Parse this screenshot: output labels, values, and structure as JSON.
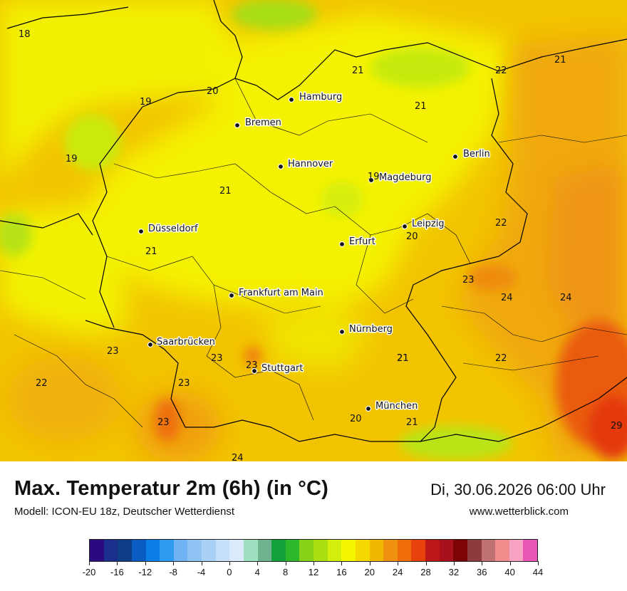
{
  "map": {
    "cities": [
      {
        "name": "Hamburg"
      },
      {
        "name": "Bremen"
      },
      {
        "name": "Hannover"
      },
      {
        "name": "Berlin"
      },
      {
        "name": "Magdeburg"
      },
      {
        "name": "Leipzig"
      },
      {
        "name": "Erfurt"
      },
      {
        "name": "Düsseldorf"
      },
      {
        "name": "Frankfurt am Main"
      },
      {
        "name": "Nürnberg"
      },
      {
        "name": "Saarbrücken"
      },
      {
        "name": "Stuttgart"
      },
      {
        "name": "München"
      }
    ],
    "values": [
      "18",
      "20",
      "19",
      "19",
      "21",
      "21",
      "22",
      "21",
      "21",
      "19",
      "21",
      "22",
      "20",
      "21",
      "23",
      "24",
      "24",
      "21",
      "22",
      "23",
      "23",
      "23",
      "22",
      "23",
      "23",
      "20",
      "21",
      "29",
      "24"
    ]
  },
  "footer": {
    "title": "Max. Temperatur 2m (6h) (in °C)",
    "subtitle": "Modell: ICON-EU 18z, Deutscher Wetterdienst",
    "datetime": "Di, 30.06.2026 06:00 Uhr",
    "website": "www.wetterblick.com"
  },
  "legend": {
    "colors": [
      "#2a0a7e",
      "#1a2e8c",
      "#0f3d86",
      "#0a5cc2",
      "#0a7de6",
      "#2f9bf0",
      "#6fb3f2",
      "#8fc3f4",
      "#a9d1f6",
      "#c6e0fa",
      "#dbeafc",
      "#9ee0c0",
      "#6fb38e",
      "#13a13b",
      "#2cb82b",
      "#86d319",
      "#a9df11",
      "#d2ee0c",
      "#f5f500",
      "#f5d800",
      "#f0b800",
      "#f09010",
      "#ee6c0a",
      "#e8420c",
      "#bc1616",
      "#a8101c",
      "#7c0404",
      "#8c3c3c",
      "#c07272",
      "#f08c8c",
      "#f7a2c2",
      "#e855b4"
    ],
    "tick_labels": [
      "-20",
      "-16",
      "-12",
      "-8",
      "-4",
      "0",
      "4",
      "8",
      "12",
      "16",
      "20",
      "24",
      "28",
      "32",
      "36",
      "40",
      "44"
    ]
  }
}
